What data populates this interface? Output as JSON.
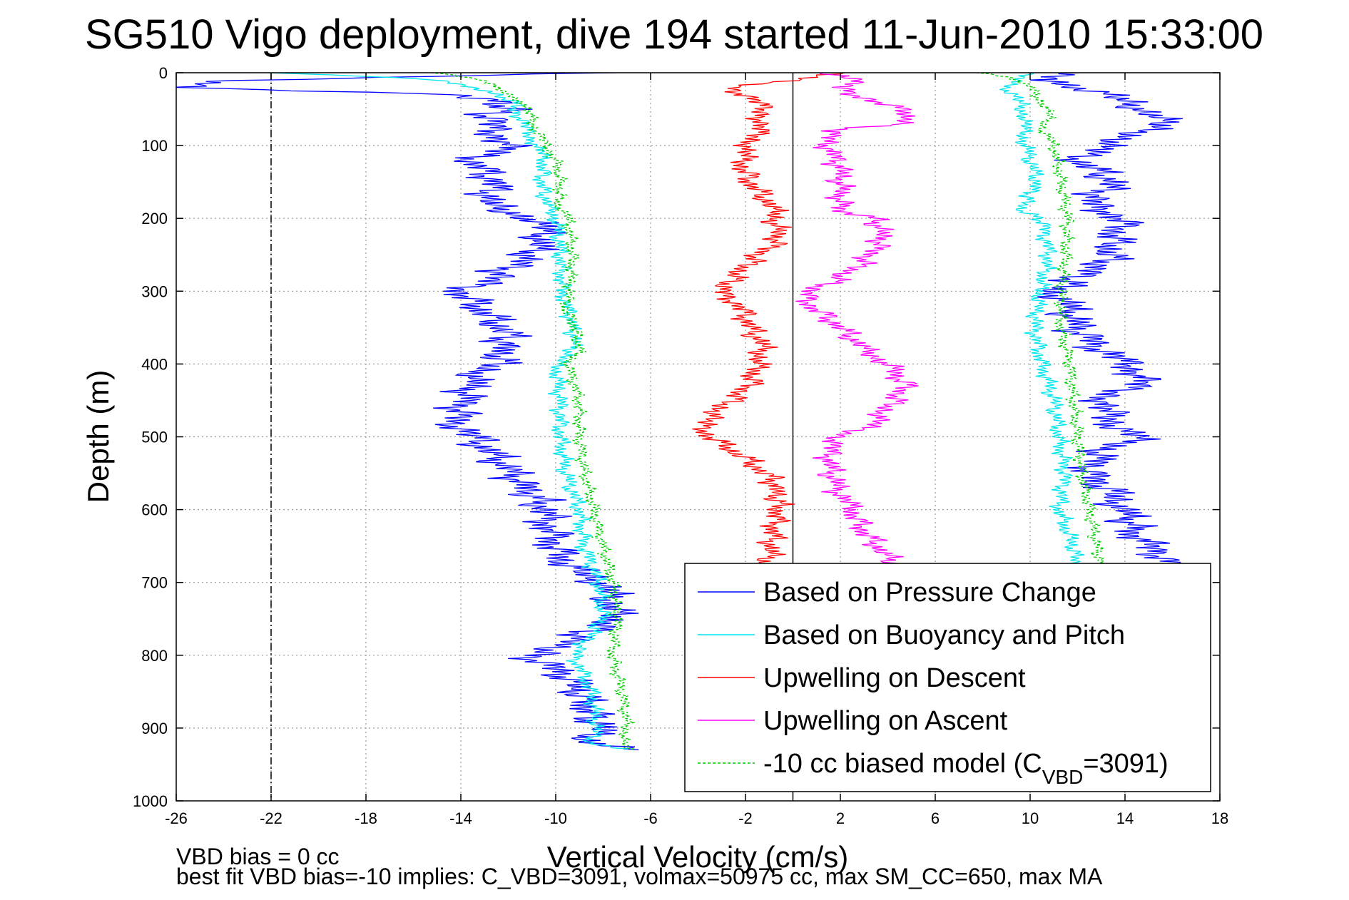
{
  "chart_data": {
    "type": "line",
    "title": "SG510 Vigo deployment, dive 194 started 11-Jun-2010 15:33:00",
    "xlabel": "Vertical Velocity (cm/s)",
    "ylabel": "Depth (m)",
    "xlim": [
      -26,
      18
    ],
    "ylim": [
      0,
      1000
    ],
    "y_reversed": true,
    "grid": true,
    "legend_position": "bottom-right",
    "xticks": [
      -26,
      -22,
      -18,
      -14,
      -10,
      -6,
      -2,
      2,
      6,
      10,
      14,
      18
    ],
    "xtick_labels": [
      "-26",
      "-22",
      "-18",
      "-14",
      "-10",
      "-6",
      "-2",
      "2",
      "6",
      "10",
      "14",
      "18"
    ],
    "yticks": [
      0,
      100,
      200,
      300,
      400,
      500,
      600,
      700,
      800,
      900,
      1000
    ],
    "ytick_labels": [
      "0",
      "100",
      "200",
      "300",
      "400",
      "500",
      "600",
      "700",
      "800",
      "900",
      "1000"
    ],
    "reference_lines": [
      {
        "x": -22,
        "style": "dash-dot",
        "color": "#000000"
      },
      {
        "x": 0,
        "style": "solid",
        "color": "#000000"
      }
    ],
    "series": [
      {
        "name": "Based on Pressure Change",
        "color": "#0000ff",
        "noise": 1.0,
        "phase": 1,
        "segments": [
          {
            "y": [
              0,
              5,
              12,
              20,
              25,
              30,
              40,
              50,
              60,
              80,
              100,
              120,
              150,
              180,
              200,
              220,
              250,
              280,
              300,
              330,
              360,
              400,
              420,
              450,
              480,
              500,
              530,
              560,
              600,
              650,
              680,
              700,
              750,
              790,
              800,
              830,
              860,
              900,
              920,
              930
            ],
            "x": [
              -8,
              -16,
              -24,
              -25.5,
              -20,
              -14,
              -12.5,
              -12,
              -13,
              -12.5,
              -12,
              -13.5,
              -12.5,
              -13,
              -11,
              -10.5,
              -11,
              -12.5,
              -14,
              -13,
              -12,
              -12.5,
              -13.5,
              -13.8,
              -14.2,
              -13.5,
              -12.5,
              -11.5,
              -10.5,
              -10,
              -9.5,
              -8,
              -7.5,
              -10,
              -11,
              -9.5,
              -8.8,
              -8.2,
              -8.6,
              -6.5
            ]
          },
          {
            "y": [
              0,
              10,
              20,
              40,
              60,
              80,
              100,
              120,
              150,
              180,
              200,
              230,
              260,
              300,
              320,
              350,
              380,
              400,
              420,
              440,
              460,
              480,
              500,
              520,
              550,
              580,
              600,
              640,
              660,
              680
            ],
            "x": [
              12,
              10.5,
              12,
              14,
              15.5,
              15,
              13,
              12,
              13.5,
              12.5,
              14,
              13.5,
              13.2,
              11,
              11.5,
              12,
              13,
              14,
              15,
              13.5,
              13,
              13.5,
              14.5,
              13,
              12.5,
              13.5,
              14,
              14.5,
              15.5,
              16.5
            ]
          }
        ]
      },
      {
        "name": "Based on Buoyancy and Pitch",
        "color": "#00e5ee",
        "noise": 0.4,
        "phase": 2,
        "segments": [
          {
            "y": [
              0,
              5,
              10,
              20,
              30,
              40,
              60,
              80,
              100,
              120,
              150,
              180,
              200,
              250,
              300,
              320,
              350,
              380,
              400,
              450,
              500,
              550,
              600,
              650,
              700,
              750,
              800,
              850,
              900,
              920,
              930
            ],
            "x": [
              -22,
              -18,
              -15,
              -13.5,
              -12.5,
              -11.8,
              -11.5,
              -11.2,
              -10.8,
              -10.5,
              -10.6,
              -10.4,
              -10,
              -9.8,
              -9.7,
              -9.5,
              -9.3,
              -9.2,
              -10,
              -9.8,
              -9.8,
              -9.6,
              -9,
              -8.8,
              -8.2,
              -8,
              -9.2,
              -8.5,
              -8.3,
              -8.6,
              -7
            ]
          },
          {
            "y": [
              0,
              10,
              20,
              40,
              60,
              80,
              100,
              150,
              190,
              200,
              250,
              300,
              350,
              400,
              450,
              500,
              550,
              600,
              650,
              680
            ],
            "x": [
              10,
              9.5,
              9,
              9.5,
              9.8,
              9.7,
              9.8,
              10.3,
              9.6,
              10.5,
              10.8,
              10.4,
              10.2,
              10.5,
              11,
              11.2,
              11.5,
              11.2,
              11.8,
              12
            ]
          }
        ]
      },
      {
        "name": "Upwelling on Descent",
        "color": "#ff0000",
        "noise": 0.6,
        "phase": 3,
        "segments": [
          {
            "y": [
              0,
              20,
              40,
              60,
              80,
              100,
              120,
              150,
              180,
              200,
              230,
              260,
              290,
              300,
              320,
              350,
              380,
              400,
              430,
              460,
              480,
              500,
              530,
              560,
              600,
              630,
              660,
              680
            ],
            "x": [
              2,
              -2.5,
              -1.5,
              -1.2,
              -1.5,
              -1.8,
              -2.2,
              -1.8,
              -1.0,
              -0.8,
              -0.6,
              -1.8,
              -2.8,
              -3.0,
              -2.2,
              -1.8,
              -1.2,
              -1.5,
              -1.8,
              -3.0,
              -3.8,
              -3.5,
              -2,
              -0.8,
              -0.6,
              -0.8,
              -1.0,
              -1.2
            ]
          }
        ]
      },
      {
        "name": "Upwelling on Ascent",
        "color": "#ff00ff",
        "noise": 0.6,
        "phase": 4,
        "segments": [
          {
            "y": [
              0,
              10,
              20,
              40,
              55,
              70,
              80,
              100,
              130,
              160,
              190,
              200,
              230,
              260,
              290,
              300,
              320,
              350,
              380,
              400,
              430,
              460,
              480,
              500,
              520,
              550,
              580,
              600,
              630,
              660,
              680
            ],
            "x": [
              1,
              3,
              2,
              3.5,
              5,
              4.5,
              1.5,
              1.5,
              2,
              2,
              2,
              3.5,
              3.8,
              3.0,
              1.5,
              0.5,
              0.8,
              2,
              3,
              4,
              4.8,
              4.0,
              3.5,
              2,
              1.5,
              1.6,
              2,
              2.5,
              3,
              3.8,
              4.2
            ]
          }
        ]
      },
      {
        "name": "-10 cc biased model (C_VBD=3091)",
        "color": "#00cc00",
        "dashed": true,
        "noise": 0.3,
        "phase": 5,
        "segments": [
          {
            "y": [
              0,
              5,
              10,
              20,
              30,
              40,
              50,
              60,
              80,
              100,
              120,
              150,
              180,
              200,
              250,
              300,
              320,
              350,
              380,
              400,
              450,
              500,
              550,
              600,
              650,
              700,
              750,
              800,
              850,
              900,
              920,
              930
            ],
            "x": [
              -15,
              -14,
              -13,
              -12.5,
              -12,
              -11.5,
              -11.2,
              -11,
              -10.8,
              -10.4,
              -10,
              -9.8,
              -9.9,
              -9.5,
              -9.3,
              -9.4,
              -9.6,
              -9.2,
              -9.0,
              -9.5,
              -9.0,
              -9.0,
              -8.8,
              -8.4,
              -8.0,
              -7.6,
              -7.4,
              -7.6,
              -7.2,
              -7.0,
              -7.2,
              -6.8
            ]
          },
          {
            "y": [
              0,
              10,
              20,
              40,
              60,
              80,
              100,
              150,
              200,
              250,
              300,
              350,
              400,
              450,
              500,
              550,
              600,
              650,
              680
            ],
            "x": [
              8,
              9.5,
              10,
              10.5,
              10.8,
              10.5,
              11,
              11.3,
              11.6,
              11.5,
              11.3,
              11.3,
              11.7,
              11.8,
              12,
              12.2,
              12.5,
              12.8,
              13
            ]
          }
        ]
      }
    ],
    "annotations": [
      "VBD bias = 0 cc",
      "best fit VBD bias=-10 implies: C_VBD=3091, volmax=50975 cc, max SM_CC=650, max MA"
    ]
  }
}
